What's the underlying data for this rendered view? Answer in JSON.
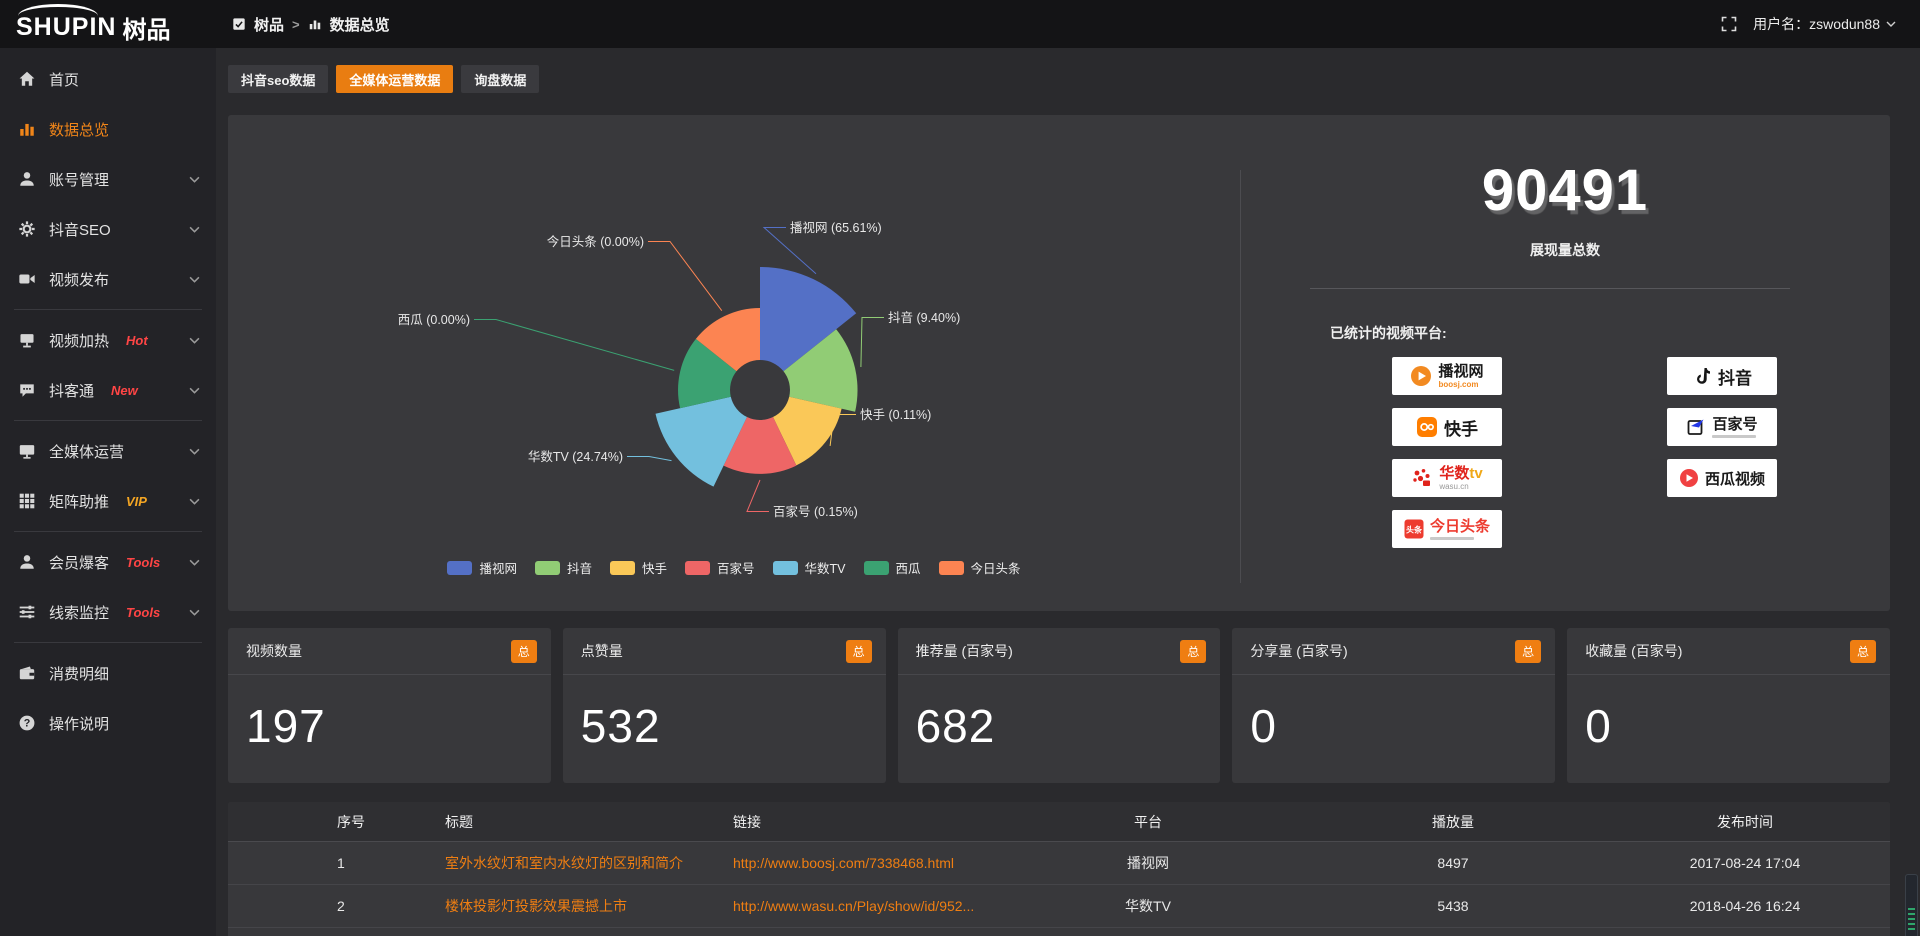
{
  "header": {
    "logo_primary": "SHUPIN",
    "logo_secondary": "树品",
    "breadcrumb_root": "树品",
    "breadcrumb_sep": ">",
    "breadcrumb_current": "数据总览",
    "username": "用户名：zswodun88"
  },
  "sidebar": {
    "items": [
      {
        "id": "home",
        "icon": "home",
        "label": "首页"
      },
      {
        "id": "data-overview",
        "icon": "chart",
        "label": "数据总览",
        "active": true
      },
      {
        "id": "account-manage",
        "icon": "user",
        "label": "账号管理",
        "chevron": true
      },
      {
        "id": "douyin-seo",
        "icon": "gear",
        "label": "抖音SEO",
        "chevron": true
      },
      {
        "id": "video-publish",
        "icon": "video",
        "label": "视频发布",
        "chevron": true
      },
      {
        "divider": true
      },
      {
        "id": "video-heat",
        "icon": "display",
        "label": "视频加热",
        "badge": "Hot",
        "badge_color": "#ff4545",
        "chevron": true
      },
      {
        "id": "douketong",
        "icon": "chat",
        "label": "抖客通",
        "badge": "New",
        "badge_color": "#ff4545",
        "chevron": true
      },
      {
        "divider": true
      },
      {
        "id": "media-operation",
        "icon": "monitor",
        "label": "全媒体运营",
        "chevron": true
      },
      {
        "id": "matrix-boost",
        "icon": "grid",
        "label": "矩阵助推",
        "badge": "VIP",
        "badge_color": "#f5a623",
        "chevron": true
      },
      {
        "divider": true
      },
      {
        "id": "member-baoke",
        "icon": "user",
        "label": "会员爆客",
        "badge": "Tools",
        "badge_color": "#ff4545",
        "chevron": true
      },
      {
        "id": "clue-monitor",
        "icon": "sliders",
        "label": "线索监控",
        "badge": "Tools",
        "badge_color": "#ff4545",
        "chevron": true
      },
      {
        "divider": true
      },
      {
        "id": "consume-detail",
        "icon": "wallet",
        "label": "消费明细"
      },
      {
        "id": "operation-guide",
        "icon": "help",
        "label": "操作说明"
      }
    ]
  },
  "tabs": [
    {
      "label": "抖音seo数据",
      "active": false
    },
    {
      "label": "全媒体运营数据",
      "active": true
    },
    {
      "label": "询盘数据",
      "active": false
    }
  ],
  "chart_data": {
    "type": "pie",
    "style": "nightingale-rose",
    "labels": [
      "播视网",
      "抖音",
      "快手",
      "百家号",
      "华数TV",
      "西瓜",
      "今日头条"
    ],
    "values_percent": [
      65.61,
      9.4,
      0.11,
      0.15,
      24.74,
      0.0,
      0.0
    ],
    "colors": [
      "#5470c6",
      "#91cc75",
      "#fac858",
      "#ee6666",
      "#73c0de",
      "#3ba272",
      "#fc8452"
    ],
    "label_format": "{name} ({percent}%)",
    "legend_position": "bottom"
  },
  "summary": {
    "value": "90491",
    "caption": "展现量总数",
    "platforms_title": "已统计的视频平台:",
    "platforms": [
      {
        "id": "boosj",
        "name": "播视网",
        "sub": "boosj.com"
      },
      {
        "id": "douyin",
        "name": "抖音"
      },
      {
        "id": "kuaishou",
        "name": "快手"
      },
      {
        "id": "baijiahao",
        "name": "百家号"
      },
      {
        "id": "wasu",
        "name": "华数tv",
        "sub": "wasu.cn"
      },
      {
        "id": "xigua",
        "name": "西瓜视频"
      },
      {
        "id": "toutiao",
        "name": "今日头条"
      }
    ]
  },
  "stat_cards": [
    {
      "label": "视频数量",
      "badge": "总",
      "value": "197"
    },
    {
      "label": "点赞量",
      "badge": "总",
      "value": "532"
    },
    {
      "label": "推荐量 (百家号)",
      "badge": "总",
      "value": "682"
    },
    {
      "label": "分享量 (百家号)",
      "badge": "总",
      "value": "0"
    },
    {
      "label": "收藏量 (百家号)",
      "badge": "总",
      "value": "0"
    }
  ],
  "table": {
    "headers": {
      "index": "序号",
      "title": "标题",
      "link": "链接",
      "platform": "平台",
      "plays": "播放量",
      "publish_time": "发布时间"
    },
    "rows": [
      {
        "index": "1",
        "title": "室外水纹灯和室内水纹灯的区别和简介",
        "link": "http://www.boosj.com/7338468.html",
        "platform": "播视网",
        "plays": "8497",
        "publish_time": "2017-08-24 17:04"
      },
      {
        "index": "2",
        "title": "楼体投影灯投影效果震撼上市",
        "link": "http://www.wasu.cn/Play/show/id/952...",
        "platform": "华数TV",
        "plays": "5438",
        "publish_time": "2018-04-26 16:24"
      },
      {
        "index": "",
        "title": "",
        "link": "",
        "platform": "",
        "plays": "",
        "publish_time": "",
        "partial": true
      }
    ]
  }
}
